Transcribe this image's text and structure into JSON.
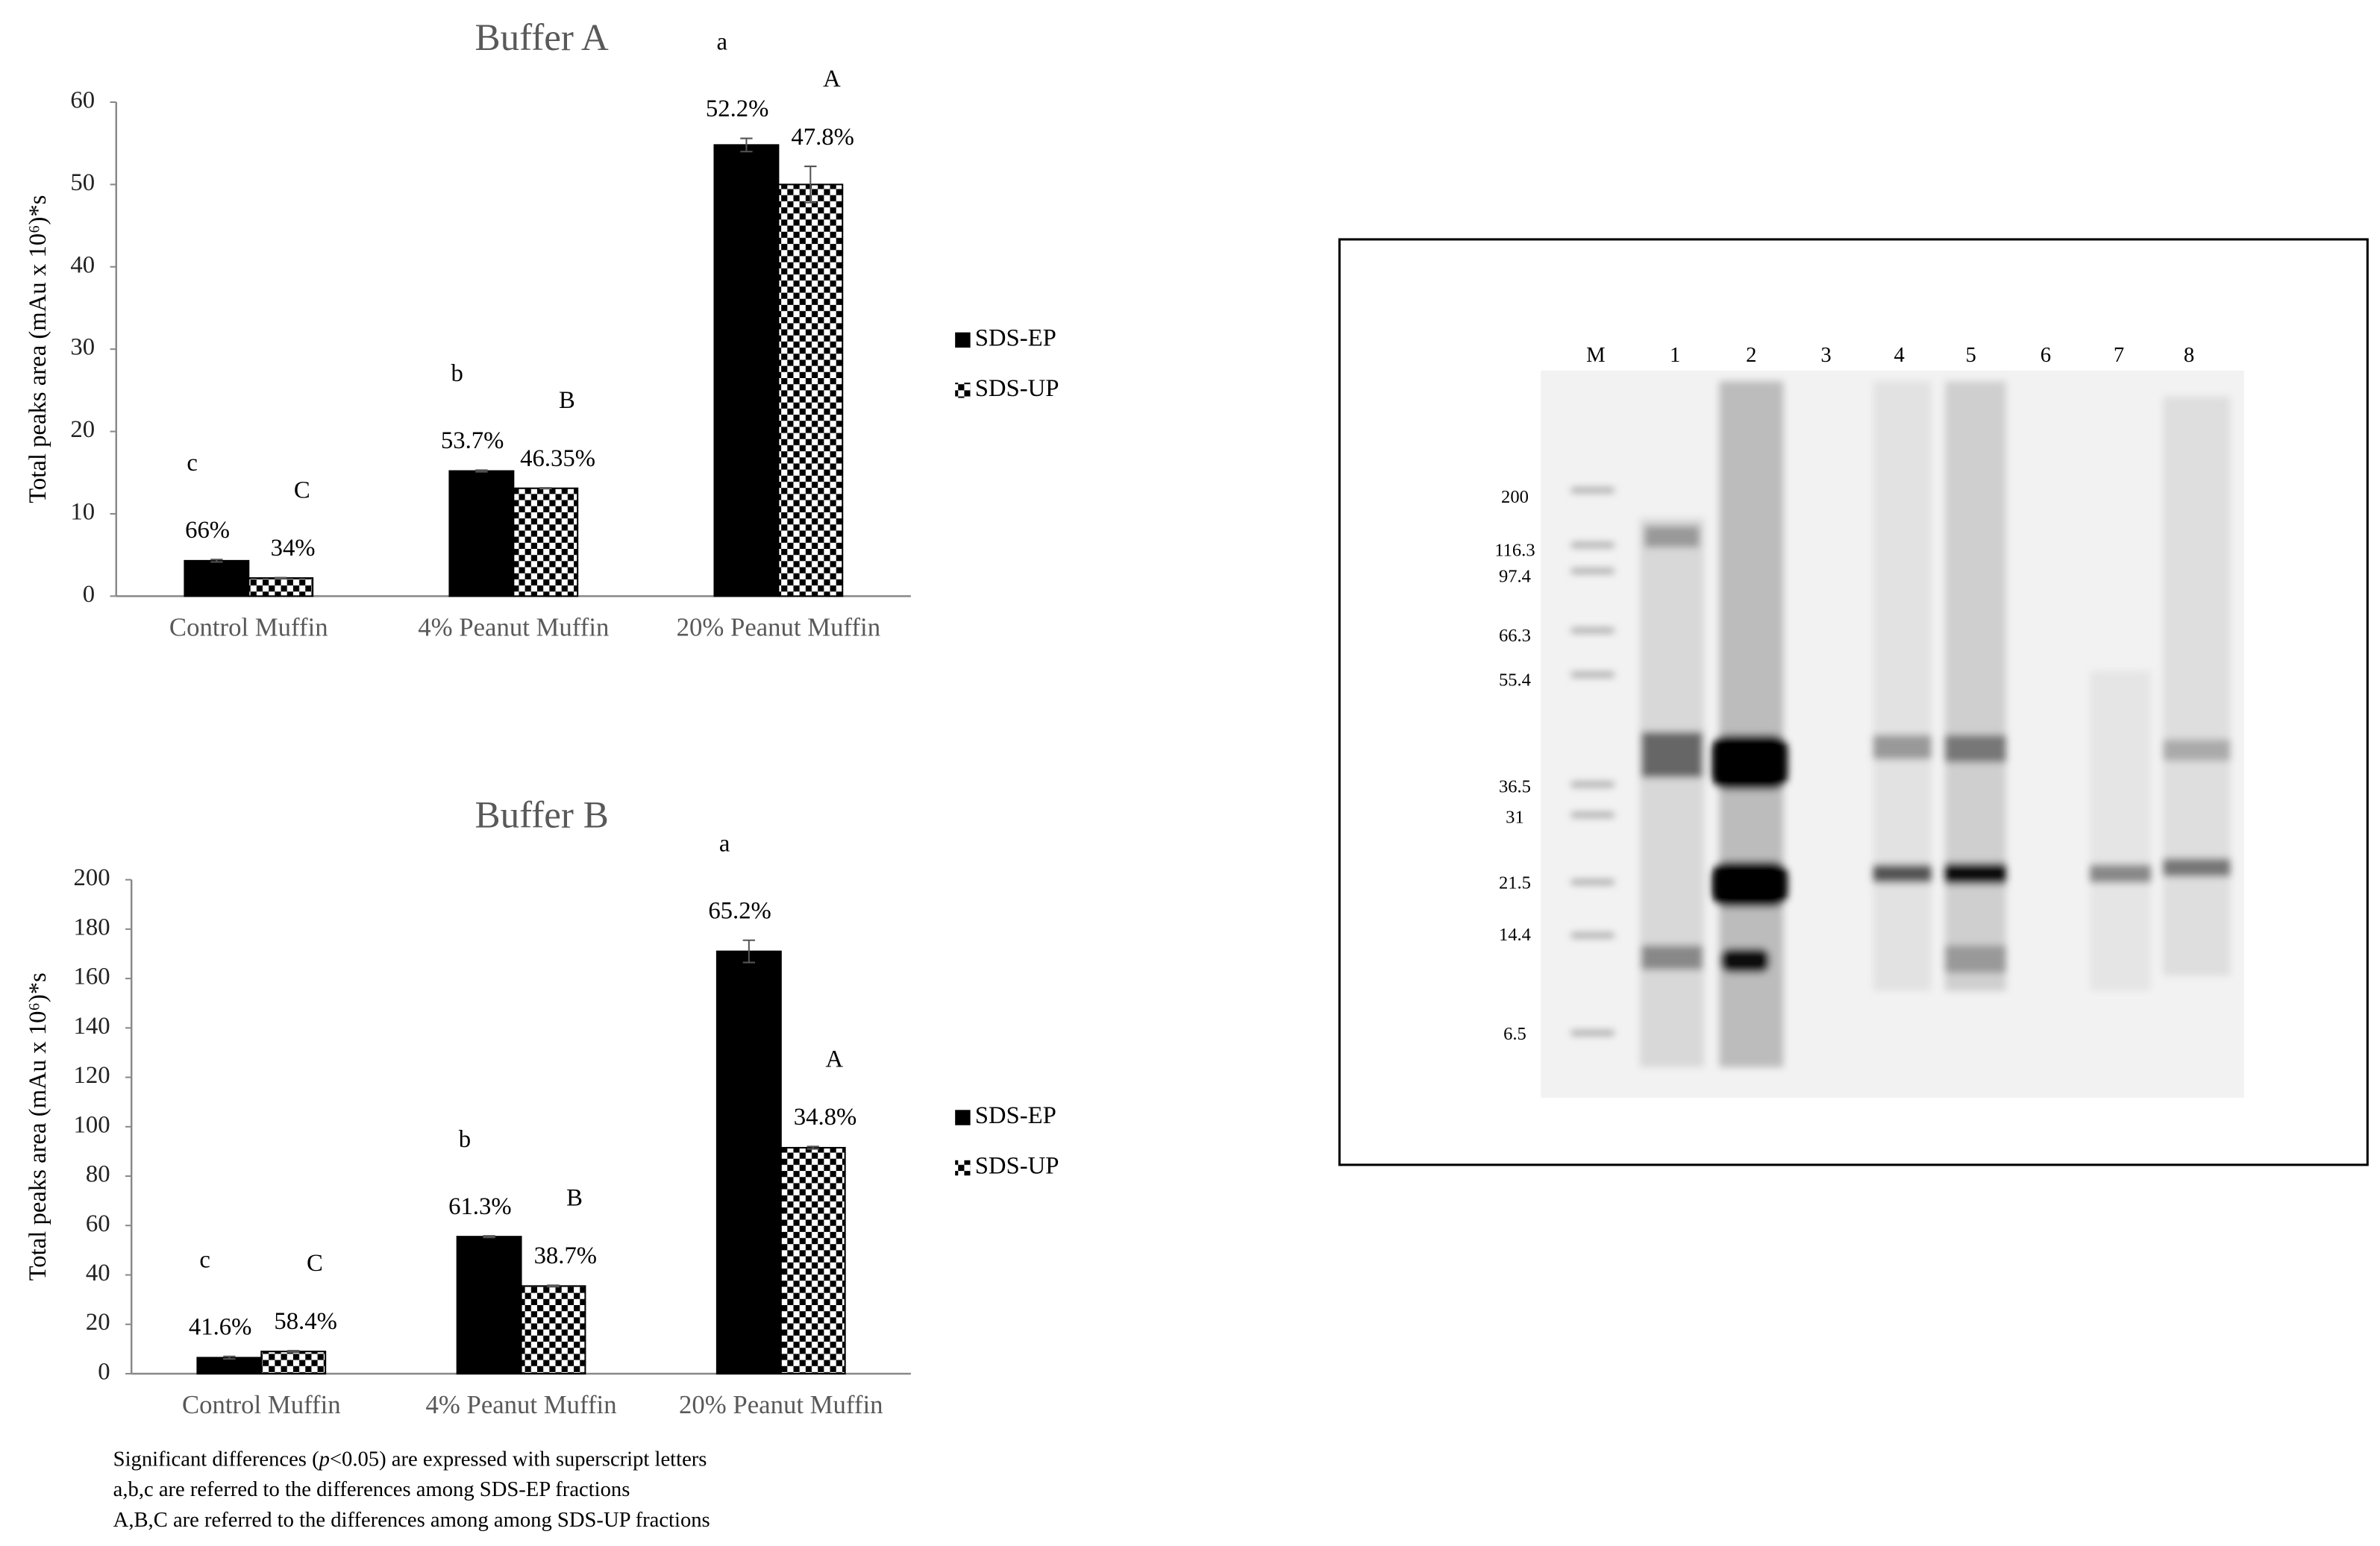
{
  "chart_data": [
    {
      "type": "bar",
      "title": "Buffer A",
      "y_label": "Total peaks area (mAu x 10⁶)*s",
      "categories": [
        "Control Muffin",
        "4% Peanut Muffin",
        "20% Peanut Muffin"
      ],
      "ylim": [
        0,
        60
      ],
      "yticks": [
        0,
        10,
        20,
        30,
        40,
        50,
        60
      ],
      "grid": false,
      "legend": "right",
      "series": [
        {
          "name": "SDS-EP",
          "color": "#000000",
          "values": [
            4.3,
            15.2,
            54.8
          ],
          "errors": [
            0.15,
            0.1,
            0.8
          ],
          "percent_labels": [
            "66%",
            "53.7%",
            "52.2%"
          ],
          "letters": [
            "c",
            "b",
            "a"
          ]
        },
        {
          "name": "SDS-UP",
          "color": "#000000",
          "pattern": "checkerboard",
          "values": [
            2.2,
            13.1,
            50
          ],
          "errors": [
            0.05,
            0.05,
            2.2
          ],
          "percent_labels": [
            "34%",
            "46.35%",
            "47.8%"
          ],
          "letters": [
            "C",
            "B",
            "A"
          ]
        }
      ]
    },
    {
      "type": "bar",
      "title": "Buffer B",
      "y_label": "Total peaks area (mAu x 10⁶)*s",
      "categories": [
        "Control Muffin",
        "4% Peanut Muffin",
        "20% Peanut Muffin"
      ],
      "ylim": [
        0,
        200
      ],
      "yticks": [
        0,
        20,
        40,
        60,
        80,
        100,
        120,
        140,
        160,
        180,
        200
      ],
      "grid": false,
      "legend": "right",
      "series": [
        {
          "name": "SDS-EP",
          "color": "#000000",
          "values": [
            6.5,
            55.5,
            171
          ],
          "errors": [
            0.5,
            0.3,
            4.5
          ],
          "percent_labels": [
            "41.6%",
            "61.3%",
            "65.2%"
          ],
          "letters": [
            "c",
            "b",
            "a"
          ]
        },
        {
          "name": "SDS-UP",
          "color": "#000000",
          "pattern": "checkerboard",
          "values": [
            9,
            35.5,
            91.5
          ],
          "errors": [
            0.3,
            0.3,
            0.5
          ],
          "percent_labels": [
            "58.4%",
            "38.7%",
            "34.8%"
          ],
          "letters": [
            "C",
            "B",
            "A"
          ]
        }
      ]
    }
  ],
  "notes": [
    [
      "Significant differences (",
      "p",
      "<0.05) are expressed with superscript letters"
    ],
    [
      "a,b,c are referred to the differences among SDS-EP fractions"
    ],
    [
      "A,B,C are referred to the differences among among SDS-UP fractions"
    ]
  ],
  "gel": {
    "lanes": [
      "M",
      "1",
      "2",
      "3",
      "4",
      "5",
      "6",
      "7",
      "8"
    ],
    "markers": [
      "200",
      "116.3",
      "97.4",
      "66.3",
      "55.4",
      "36.5",
      "31",
      "21.5",
      "14.4",
      "6.5"
    ]
  }
}
